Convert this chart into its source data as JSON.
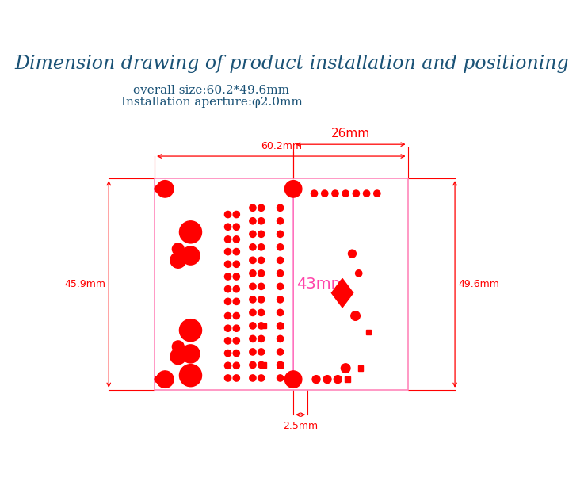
{
  "title": "Dimension drawing of product installation and positioning",
  "title_color": "#1a5276",
  "title_fontsize": 17,
  "subtitle1": "overall size:60.2*49.6mm",
  "subtitle2": "Installation aperture:φ2.0mm",
  "subtitle_color": "#1a5276",
  "subtitle_fontsize": 11,
  "red": "#FF0000",
  "pink_dim": "#FF6699",
  "bg_color": "#FFFFFF",
  "pcb_border_color": "#FF88BB",
  "dim_43_color": "#FF44AA"
}
